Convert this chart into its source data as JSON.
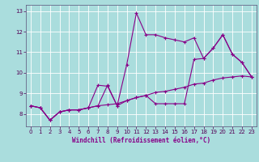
{
  "xlabel": "Windchill (Refroidissement éolien,°C)",
  "bg_color": "#aadddd",
  "line_color": "#880088",
  "grid_color": "#cceeee",
  "xlim": [
    -0.5,
    23.5
  ],
  "ylim": [
    7.4,
    13.3
  ],
  "yticks": [
    8,
    9,
    10,
    11,
    12,
    13
  ],
  "xticks": [
    0,
    1,
    2,
    3,
    4,
    5,
    6,
    7,
    8,
    9,
    10,
    11,
    12,
    13,
    14,
    15,
    16,
    17,
    18,
    19,
    20,
    21,
    22,
    23
  ],
  "series1": [
    8.4,
    8.3,
    7.7,
    8.1,
    8.2,
    8.2,
    8.3,
    9.4,
    9.35,
    8.4,
    10.4,
    12.9,
    11.85,
    11.85,
    11.7,
    11.6,
    11.5,
    11.7,
    10.7,
    11.2,
    11.85,
    10.9,
    10.5,
    9.8
  ],
  "series2": [
    8.4,
    8.3,
    7.7,
    8.1,
    8.2,
    8.2,
    8.3,
    8.4,
    8.45,
    8.5,
    8.65,
    8.8,
    8.9,
    9.05,
    9.1,
    9.2,
    9.3,
    9.45,
    9.5,
    9.65,
    9.75,
    9.8,
    9.85,
    9.8
  ],
  "series3": [
    8.4,
    8.3,
    7.7,
    8.1,
    8.2,
    8.2,
    8.3,
    8.4,
    9.4,
    8.4,
    8.65,
    8.8,
    8.9,
    8.5,
    8.5,
    8.5,
    8.5,
    10.65,
    10.7,
    11.2,
    11.85,
    10.9,
    10.5,
    9.8
  ],
  "tick_fontsize": 5.0,
  "xlabel_fontsize": 5.5,
  "figsize": [
    3.2,
    2.0
  ],
  "dpi": 100
}
